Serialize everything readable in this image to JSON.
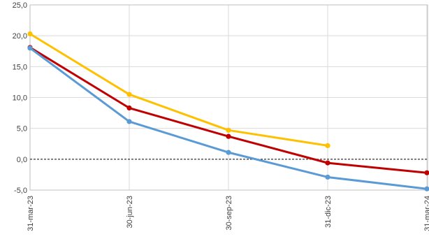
{
  "chart_data": {
    "type": "line",
    "title": "",
    "xlabel": "",
    "ylabel": "",
    "ylim": [
      -5,
      25
    ],
    "y_ticks": [
      -5,
      0,
      5,
      10,
      15,
      20,
      25
    ],
    "y_tick_labels": [
      "-5,0",
      "0,0",
      "5,0",
      "10,0",
      "15,0",
      "20,0",
      "25,0"
    ],
    "categories": [
      "31-mar-23",
      "30-jun-23",
      "30-sep-23",
      "31-dic-23",
      "31-mar-24"
    ],
    "grid": true,
    "zero_line": "dashed",
    "legend": "none",
    "series": [
      {
        "color": "#ffc000",
        "values": [
          20.3,
          10.5,
          4.7,
          2.2,
          null
        ]
      },
      {
        "color": "#c00000",
        "values": [
          18.1,
          8.3,
          3.7,
          -0.6,
          -2.2
        ]
      },
      {
        "color": "#5b9bd5",
        "values": [
          18.0,
          6.1,
          1.1,
          -2.9,
          -4.8
        ]
      }
    ]
  }
}
